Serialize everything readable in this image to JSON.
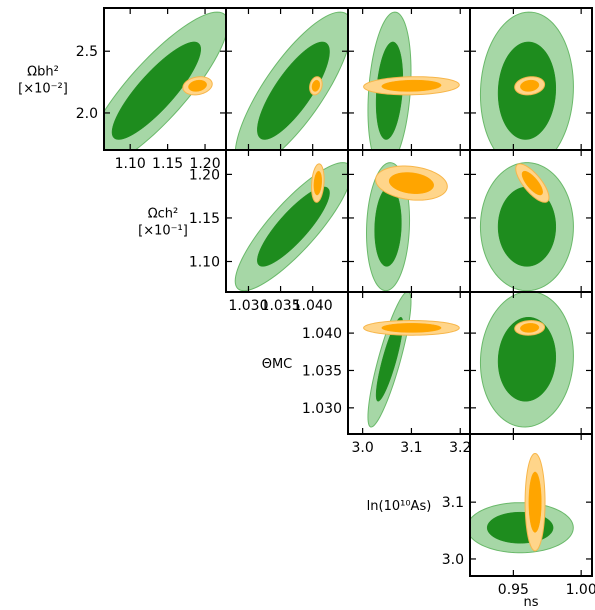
{
  "chart_data": {
    "type": "corner",
    "colors": {
      "green_outer": "#a6d7a6",
      "green_outer_edge": "#6ab96a",
      "green_inner": "#1e8c1e",
      "orange_outer": "#ffd58a",
      "orange_outer_edge": "#f7b64a",
      "orange_inner": "#ffa500"
    },
    "parameters": [
      {
        "id": "omb",
        "label_lines": [
          "Ωbh²",
          "[×10⁻²]"
        ],
        "ticks": [
          "2.0",
          "2.5"
        ]
      },
      {
        "id": "omc",
        "label_lines": [
          "Ωch²",
          "[×10⁻¹]"
        ],
        "ticks": [
          "1.10",
          "1.15",
          "1.20"
        ]
      },
      {
        "id": "theta",
        "label_lines": [
          "ΘMC"
        ],
        "ticks": [
          "1.030",
          "1.035",
          "1.040"
        ]
      },
      {
        "id": "lnA",
        "label_lines": [
          "ln(10¹⁰As)"
        ],
        "ticks": [
          "3.0",
          "3.1"
        ]
      },
      {
        "id": "ns",
        "label_lines": [
          "ns"
        ],
        "ticks": [
          "0.95",
          "1.00"
        ]
      }
    ],
    "x_axes": [
      {
        "param": "omc",
        "ticks": [
          "1.10",
          "1.15",
          "1.20"
        ]
      },
      {
        "param": "theta",
        "ticks": [
          "1.030",
          "1.035",
          "1.040"
        ]
      },
      {
        "param": "lnA",
        "ticks": [
          "3.0",
          "3.1",
          "3.2"
        ]
      },
      {
        "param": "ns",
        "ticks": [
          "0.95",
          "1.00"
        ]
      }
    ],
    "ranges": {
      "omb": [
        1.7,
        2.85
      ],
      "omc": [
        1.065,
        1.228
      ],
      "theta": [
        1.0265,
        1.0455
      ],
      "lnA": [
        2.97,
        3.22
      ],
      "ns": [
        0.918,
        1.008
      ]
    },
    "panels": [
      {
        "x": "omc",
        "y": "omb",
        "green": {
          "mean": [
            1.135,
            2.18
          ],
          "sd": [
            0.039,
            0.26
          ],
          "rho": 0.85
        },
        "orange": {
          "mean": [
            1.19,
            2.22
          ],
          "sd": [
            0.008,
            0.03
          ],
          "rho": 0.2
        }
      },
      {
        "x": "theta",
        "y": "omb",
        "green": {
          "mean": [
            1.037,
            2.18
          ],
          "sd": [
            0.0037,
            0.26
          ],
          "rho": 0.8
        },
        "orange": {
          "mean": [
            1.0405,
            2.22
          ],
          "sd": [
            0.0004,
            0.03
          ],
          "rho": 0.2
        }
      },
      {
        "x": "lnA",
        "y": "omb",
        "green": {
          "mean": [
            3.055,
            2.18
          ],
          "sd": [
            0.018,
            0.26
          ],
          "rho": 0.25
        },
        "orange": {
          "mean": [
            3.1,
            2.22
          ],
          "sd": [
            0.04,
            0.03
          ],
          "rho": 0.1
        }
      },
      {
        "x": "ns",
        "y": "omb",
        "green": {
          "mean": [
            0.96,
            2.18
          ],
          "sd": [
            0.014,
            0.26
          ],
          "rho": 0.05
        },
        "orange": {
          "mean": [
            0.962,
            2.22
          ],
          "sd": [
            0.0045,
            0.03
          ],
          "rho": 0.15
        }
      },
      {
        "x": "theta",
        "y": "omc",
        "green": {
          "mean": [
            1.037,
            1.14
          ],
          "sd": [
            0.0037,
            0.03
          ],
          "rho": 0.85
        },
        "orange": {
          "mean": [
            1.0408,
            1.19
          ],
          "sd": [
            0.0004,
            0.009
          ],
          "rho": 0.2
        }
      },
      {
        "x": "lnA",
        "y": "omc",
        "green": {
          "mean": [
            3.052,
            1.14
          ],
          "sd": [
            0.018,
            0.03
          ],
          "rho": 0.1
        },
        "orange": {
          "mean": [
            3.1,
            1.19
          ],
          "sd": [
            0.03,
            0.008
          ],
          "rho": -0.2
        }
      },
      {
        "x": "ns",
        "y": "omc",
        "green": {
          "mean": [
            0.96,
            1.14
          ],
          "sd": [
            0.014,
            0.03
          ],
          "rho": 0.0
        },
        "orange": {
          "mean": [
            0.964,
            1.19
          ],
          "sd": [
            0.005,
            0.009
          ],
          "rho": -0.75
        }
      },
      {
        "x": "lnA",
        "y": "theta",
        "green": {
          "mean": [
            3.055,
            1.0365
          ],
          "sd": [
            0.018,
            0.0037
          ],
          "rho": 0.85
        },
        "orange": {
          "mean": [
            3.1,
            1.0407
          ],
          "sd": [
            0.04,
            0.0004
          ],
          "rho": 0.0
        }
      },
      {
        "x": "ns",
        "y": "theta",
        "green": {
          "mean": [
            0.96,
            1.0365
          ],
          "sd": [
            0.014,
            0.0037
          ],
          "rho": 0.05
        },
        "orange": {
          "mean": [
            0.962,
            1.0407
          ],
          "sd": [
            0.0045,
            0.0004
          ],
          "rho": 0.1
        }
      },
      {
        "x": "ns",
        "y": "lnA",
        "green": {
          "mean": [
            0.955,
            3.055
          ],
          "sd": [
            0.016,
            0.018
          ],
          "rho": 0.0
        },
        "orange": {
          "mean": [
            0.966,
            3.1
          ],
          "sd": [
            0.003,
            0.035
          ],
          "rho": 0.0
        }
      }
    ]
  }
}
